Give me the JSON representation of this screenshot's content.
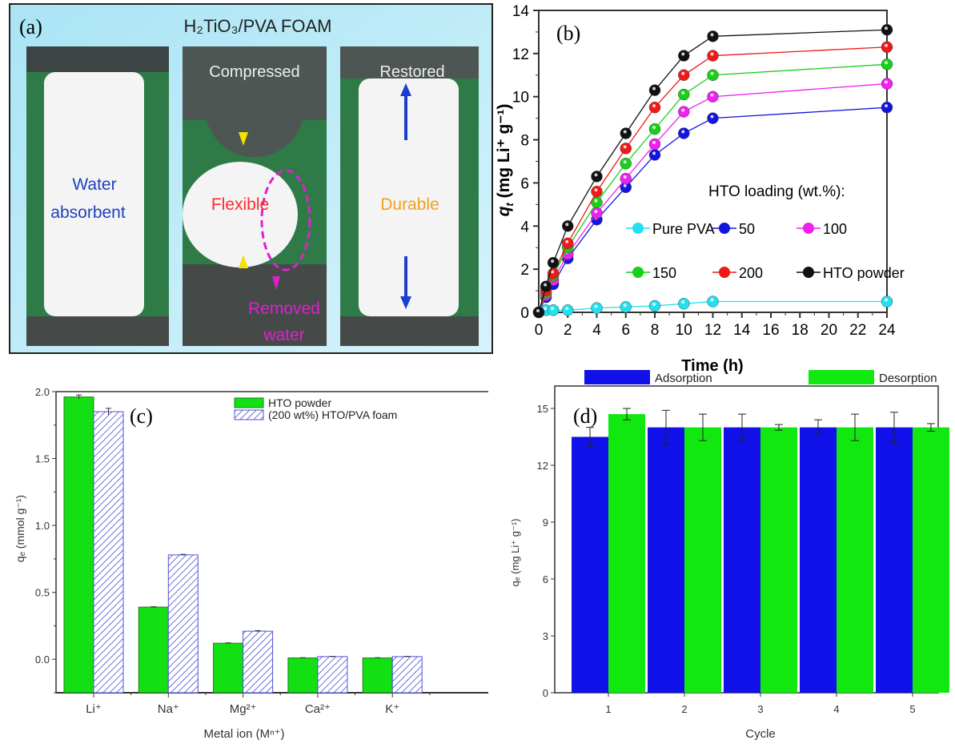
{
  "panel_a": {
    "label": "(a)",
    "title": "H₂TiO₃/PVA FOAM",
    "photos": [
      {
        "caption": "",
        "lines": [
          "Water",
          "absorbent"
        ],
        "color": "#1f3fbf"
      },
      {
        "caption": "Compressed",
        "lines": [
          "Flexible"
        ],
        "color": "#ff2a2a"
      },
      {
        "caption": "Restored",
        "lines": [
          "Durable"
        ],
        "color": "#f0a020"
      }
    ],
    "annotation": [
      "Removed",
      "water"
    ],
    "annotation_color": "#e020d0",
    "frame_color": "#bfeaf7"
  },
  "chart_data": [
    {
      "panel": "(b)",
      "type": "line",
      "xlabel": "Time (h)",
      "ylabel": "qt (mg Li⁺ g⁻¹)",
      "ylabel_main": "q",
      "ylabel_sub": "t",
      "ylabel_rest": " (mg Li⁺ g⁻¹)",
      "xlim": [
        0,
        24
      ],
      "ylim": [
        0,
        14
      ],
      "xticks": [
        0,
        2,
        4,
        6,
        8,
        10,
        12,
        14,
        16,
        18,
        20,
        22,
        24
      ],
      "yticks": [
        0,
        2,
        4,
        6,
        8,
        10,
        12,
        14
      ],
      "legend_title": "HTO loading (wt.%):",
      "x": [
        0,
        0.5,
        1,
        2,
        4,
        6,
        8,
        10,
        12,
        24
      ],
      "series": [
        {
          "name": "Pure PVA",
          "color": "#22e0f0",
          "values": [
            0,
            0.1,
            0.1,
            0.1,
            0.2,
            0.25,
            0.3,
            0.4,
            0.5,
            0.5
          ]
        },
        {
          "name": "50",
          "color": "#1414e0",
          "values": [
            0,
            0.7,
            1.3,
            2.5,
            4.3,
            5.8,
            7.3,
            8.3,
            9.0,
            9.5
          ]
        },
        {
          "name": "100",
          "color": "#f020f0",
          "values": [
            0,
            0.8,
            1.5,
            2.7,
            4.6,
            6.2,
            7.8,
            9.3,
            10.0,
            10.6
          ]
        },
        {
          "name": "150",
          "color": "#18d018",
          "values": [
            0,
            0.9,
            1.7,
            3.0,
            5.1,
            6.9,
            8.5,
            10.1,
            11.0,
            11.5
          ]
        },
        {
          "name": "200",
          "color": "#f01818",
          "values": [
            0,
            1.0,
            1.8,
            3.2,
            5.6,
            7.6,
            9.5,
            11.0,
            11.9,
            12.3
          ]
        },
        {
          "name": "HTO powder",
          "color": "#111111",
          "values": [
            0,
            1.2,
            2.3,
            4.0,
            6.3,
            8.3,
            10.3,
            11.9,
            12.8,
            13.1
          ]
        }
      ]
    },
    {
      "panel": "(c)",
      "type": "bar",
      "xlabel": "Metal ion (Mⁿ⁺)",
      "ylabel": "qₑ (mmol g⁻¹)",
      "ylim": [
        -0.25,
        2.0
      ],
      "yticks": [
        "0.0",
        "0.5",
        "1.0",
        "1.5",
        "2.0"
      ],
      "categories": [
        "Li⁺",
        "Na⁺",
        "Mg²⁺",
        "Ca²⁺",
        "K⁺"
      ],
      "series": [
        {
          "name": "HTO powder",
          "color": "#12e012",
          "values": [
            1.96,
            0.39,
            0.12,
            0.01,
            0.01
          ],
          "errors": [
            0.015,
            0.003,
            0.003,
            0.002,
            0.002
          ]
        },
        {
          "name": "(200 wt%) HTO/PVA foam",
          "color": "#5050e0",
          "values": [
            1.85,
            0.78,
            0.21,
            0.02,
            0.02
          ],
          "errors": [
            0.025,
            0.004,
            0.004,
            0.002,
            0.002
          ]
        }
      ]
    },
    {
      "panel": "(d)",
      "type": "bar",
      "xlabel": "Cycle",
      "ylabel": "qₑ (mg Li⁺ g⁻¹)",
      "ylim": [
        0,
        15
      ],
      "yticks": [
        "0",
        "3",
        "6",
        "9",
        "12",
        "15"
      ],
      "categories": [
        "1",
        "2",
        "3",
        "4",
        "5"
      ],
      "series": [
        {
          "name": "Adsorption",
          "color": "#1010e8",
          "values": [
            13.5,
            14,
            14,
            14,
            14
          ],
          "errors": [
            0.5,
            0.9,
            0.7,
            0.4,
            0.8
          ]
        },
        {
          "name": "Desorption",
          "color": "#10e810",
          "values": [
            14.7,
            14,
            14,
            14,
            14
          ],
          "errors": [
            0.3,
            0.7,
            0.15,
            0.7,
            0.2
          ]
        }
      ]
    }
  ]
}
